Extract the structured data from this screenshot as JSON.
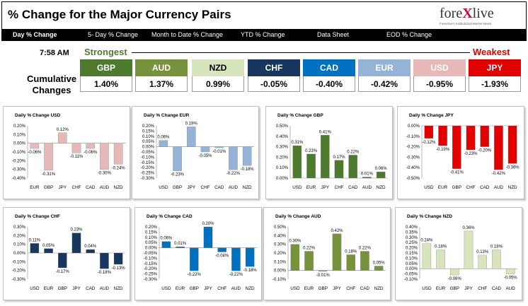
{
  "header": {
    "title": "% Change for the Major Currency Pairs"
  },
  "logo": {
    "word_a": "fore",
    "word_x": "X",
    "word_b": "live",
    "tagline": "Forextive's Institutional Market News"
  },
  "tabs": [
    {
      "label": "Day % Change",
      "active": true
    },
    {
      "label": "5- Day % Change"
    },
    {
      "label": "Month to Date % Change"
    },
    {
      "label": "YTD % Change"
    },
    {
      "label": "Data Sheet"
    },
    {
      "label": "EOD % Change"
    }
  ],
  "summary": {
    "time": "7:58 AM",
    "strongest_label": "Strongest",
    "weakest_label": "Weakest",
    "cumulative_label_1": "Cumulative",
    "cumulative_label_2": "Changes",
    "currencies": [
      {
        "code": "GBP",
        "value": "1.40%",
        "color": "#4e7a2d"
      },
      {
        "code": "AUD",
        "value": "1.37%",
        "color": "#76933c"
      },
      {
        "code": "NZD",
        "value": "0.99%",
        "color": "#d8e4bc"
      },
      {
        "code": "CHF",
        "value": "-0.05%",
        "color": "#17375e"
      },
      {
        "code": "CAD",
        "value": "-0.40%",
        "color": "#0070c0"
      },
      {
        "code": "EUR",
        "value": "-0.42%",
        "color": "#95b3d7"
      },
      {
        "code": "USD",
        "value": "-0.95%",
        "color": "#e6b9b8"
      },
      {
        "code": "JPY",
        "value": "-1.93%",
        "color": "#e30000"
      }
    ]
  },
  "chart_data": [
    {
      "type": "bar",
      "title": "Daily % Change USD",
      "categories": [
        "EUR",
        "GBP",
        "JPY",
        "CHF",
        "CAD",
        "AUD",
        "NZD"
      ],
      "values": [
        -0.06,
        -0.31,
        0.12,
        -0.11,
        -0.06,
        -0.3,
        -0.24
      ],
      "labels": [
        "-0.06%",
        "-0.31%",
        "0.12%",
        "-0.11%",
        "-0.06%",
        "-0.30%",
        "-0.24%"
      ],
      "ylim": [
        -0.4,
        0.2
      ],
      "ticks": [
        "0.20%",
        "0.10%",
        "0.00%",
        "-0.10%",
        "-0.20%",
        "-0.30%",
        "-0.40%"
      ],
      "color": "#e6b9b8"
    },
    {
      "type": "bar",
      "title": "Daily % Change EUR",
      "categories": [
        "USD",
        "GBP",
        "JPY",
        "CHF",
        "CAD",
        "AUD",
        "NZD"
      ],
      "values": [
        0.06,
        -0.23,
        0.19,
        -0.05,
        -0.01,
        -0.22,
        -0.18
      ],
      "labels": [
        "0.06%",
        "-0.23%",
        "0.19%",
        "-0.05%",
        "-0.01%",
        "-0.22%",
        "-0.18%"
      ],
      "ylim": [
        -0.3,
        0.2
      ],
      "ticks": [
        "0.20%",
        "0.15%",
        "0.10%",
        "0.05%",
        "0.00%",
        "-0.05%",
        "-0.10%",
        "-0.15%",
        "-0.20%",
        "-0.25%",
        "-0.30%"
      ],
      "color": "#95b3d7"
    },
    {
      "type": "bar",
      "title": "Daily % Change GBP",
      "categories": [
        "USD",
        "EUR",
        "JPY",
        "CHF",
        "CAD",
        "AUD",
        "NZD"
      ],
      "values": [
        0.31,
        0.23,
        0.41,
        0.17,
        0.22,
        0.01,
        0.06
      ],
      "labels": [
        "0.31%",
        "0.23%",
        "0.41%",
        "0.17%",
        "0.22%",
        "0.01%",
        "0.06%"
      ],
      "ylim": [
        0.0,
        0.5
      ],
      "ticks": [
        "0.50%",
        "0.40%",
        "0.30%",
        "0.20%",
        "0.10%",
        "0.00%"
      ],
      "color": "#4e7a2d"
    },
    {
      "type": "bar",
      "title": "Daily % Change JPY",
      "categories": [
        "USD",
        "EUR",
        "GBP",
        "CHF",
        "CAD",
        "AUD",
        "NZD"
      ],
      "values": [
        -0.12,
        -0.19,
        -0.41,
        -0.23,
        -0.2,
        -0.42,
        -0.36
      ],
      "labels": [
        "-0.12%",
        "-0.19%",
        "-0.41%",
        "-0.23%",
        "-0.20%",
        "-0.42%",
        "-0.36%"
      ],
      "ylim": [
        -0.5,
        0.0
      ],
      "ticks": [
        "0.00%",
        "-0.10%",
        "-0.20%",
        "-0.30%",
        "-0.40%",
        "-0.50%"
      ],
      "color": "#e30000"
    },
    {
      "type": "bar",
      "title": "Daily % Change CHF",
      "categories": [
        "USD",
        "EUR",
        "GBP",
        "JPY",
        "CAD",
        "AUD",
        "NZD"
      ],
      "values": [
        0.11,
        0.05,
        -0.17,
        0.23,
        0.04,
        -0.18,
        -0.13
      ],
      "labels": [
        "0.11%",
        "0.05%",
        "-0.17%",
        "0.23%",
        "0.04%",
        "-0.18%",
        "-0.13%"
      ],
      "ylim": [
        -0.3,
        0.3
      ],
      "ticks": [
        "0.30%",
        "0.20%",
        "0.10%",
        "0.00%",
        "-0.10%",
        "-0.20%",
        "-0.30%"
      ],
      "color": "#17375e"
    },
    {
      "type": "bar",
      "title": "Daily % Change CAD",
      "categories": [
        "USD",
        "EUR",
        "GBP",
        "JPY",
        "CHF",
        "AUD",
        "NZD"
      ],
      "values": [
        0.06,
        0.01,
        -0.22,
        0.2,
        -0.04,
        -0.22,
        -0.18
      ],
      "labels": [
        "0.06%",
        "0.01%",
        "-0.22%",
        "0.20%",
        "-0.04%",
        "-0.22%",
        "-0.18%"
      ],
      "ylim": [
        -0.3,
        0.2
      ],
      "ticks": [
        "0.20%",
        "0.15%",
        "0.10%",
        "0.05%",
        "0.00%",
        "-0.05%",
        "-0.10%",
        "-0.15%",
        "-0.20%",
        "-0.25%",
        "-0.30%"
      ],
      "color": "#0070c0"
    },
    {
      "type": "bar",
      "title": "Daily % Change AUD",
      "categories": [
        "USD",
        "EUR",
        "GBP",
        "JPY",
        "CHF",
        "CAD",
        "NZD"
      ],
      "values": [
        0.3,
        0.22,
        -0.01,
        0.42,
        0.18,
        0.22,
        0.05
      ],
      "labels": [
        "0.30%",
        "0.22%",
        "-0.01%",
        "0.42%",
        "0.18%",
        "0.22%",
        "0.05%"
      ],
      "ylim": [
        -0.1,
        0.5
      ],
      "ticks": [
        "0.50%",
        "0.40%",
        "0.30%",
        "0.20%",
        "0.10%",
        "0.00%",
        "-0.10%"
      ],
      "color": "#76933c"
    },
    {
      "type": "bar",
      "title": "Daily % Change NZD",
      "categories": [
        "USD",
        "EUR",
        "GBP",
        "JPY",
        "CHF",
        "CAD",
        "AUD"
      ],
      "values": [
        0.24,
        0.18,
        -0.06,
        0.36,
        0.13,
        0.18,
        -0.05
      ],
      "labels": [
        "0.24%",
        "0.18%",
        "-0.06%",
        "0.36%",
        "0.13%",
        "0.18%",
        "-0.05%"
      ],
      "ylim": [
        -0.1,
        0.4
      ],
      "ticks": [
        "0.40%",
        "0.35%",
        "0.30%",
        "0.25%",
        "0.20%",
        "0.15%",
        "0.10%",
        "0.05%",
        "0.00%",
        "-0.05%",
        "-0.10%"
      ],
      "color": "#d8e4bc"
    }
  ]
}
